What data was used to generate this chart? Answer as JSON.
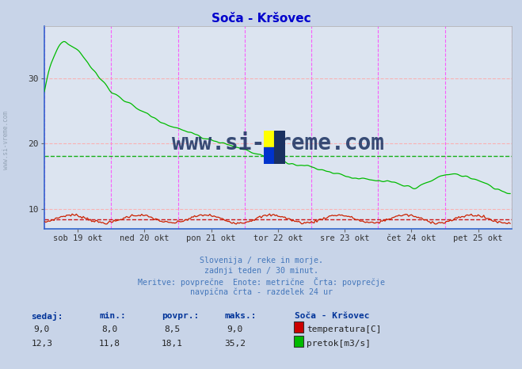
{
  "title": "Soča - Kršovec",
  "title_color": "#0000cc",
  "bg_color": "#c8d4e8",
  "plot_bg_color": "#dce4f0",
  "grid_color_h": "#ffaaaa",
  "grid_color_v": "#ff44ff",
  "x_labels": [
    "sob 19 okt",
    "ned 20 okt",
    "pon 21 okt",
    "tor 22 okt",
    "sre 23 okt",
    "čet 24 okt",
    "pet 25 okt"
  ],
  "y_ticks": [
    10,
    20,
    30
  ],
  "y_lim": [
    7.0,
    38.0
  ],
  "x_lim": [
    0,
    336
  ],
  "avg_temp_line": 8.5,
  "avg_flow_line": 18.1,
  "avg_temp_color": "#cc0000",
  "avg_flow_color": "#00aa00",
  "temp_line_color": "#cc2200",
  "flow_line_color": "#00bb00",
  "watermark_text": "www.si-vreme.com",
  "watermark_color": "#1a3060",
  "footer_lines": [
    "Slovenija / reke in morje.",
    "zadnji teden / 30 minut.",
    "Meritve: povrpčne  Enote: metrične  Črta: povrprečje",
    "navpična črta - razdelek 24 ur"
  ],
  "footer_color": "#4477bb",
  "table_header_color": "#003399",
  "station_label": "Soča - Kršovec",
  "row1": {
    "sedaj": "9,0",
    "min": "8,0",
    "povpr": "8,5",
    "maks": "9,0",
    "label": "temperatura[C]",
    "color": "#cc0000"
  },
  "row2": {
    "sedaj": "12,3",
    "min": "11,8",
    "povpr": "18,1",
    "maks": "35,2",
    "label": "pretok[m3/s]",
    "color": "#00bb00"
  },
  "left_label": "www.si-vreme.com",
  "left_label_color": "#8899aa",
  "dpi": 100,
  "fig_width": 6.59,
  "fig_height": 4.66
}
